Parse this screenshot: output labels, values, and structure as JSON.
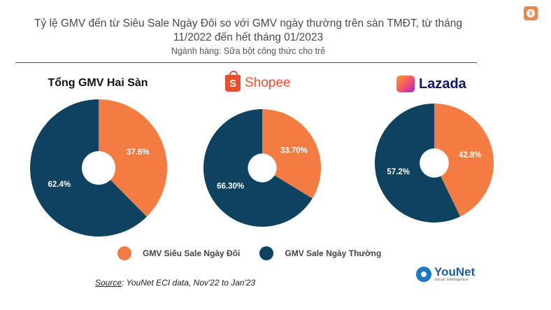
{
  "title": "Tỷ lệ GMV đến từ Siêu Sale Ngày Đôi so với GMV ngày thường trên sàn TMĐT, từ tháng 11/2022 đến hết tháng 01/2023",
  "subtitle": "Ngành hàng: Sữa bột công thức cho trẻ",
  "page_number": "8",
  "colors": {
    "sieu_sale": "#f47c43",
    "ngay_thuong": "#0d4360",
    "shopee": "#ee4d2d",
    "lazada": "#10156f"
  },
  "logos": {
    "shopee": "Shopee",
    "lazada": "Lazada",
    "younet": "YouNet",
    "younet_tagline": "social intelligence"
  },
  "chart_data": [
    {
      "type": "pie",
      "title": "Tổng GMV Hai Sàn",
      "categories": [
        "GMV Siêu Sale Ngày Đôi",
        "GMV Sale Ngày Thường"
      ],
      "values": [
        37.6,
        62.4
      ],
      "labels": [
        "37.6%",
        "62.4%"
      ]
    },
    {
      "type": "pie",
      "title": "Shopee",
      "categories": [
        "GMV Siêu Sale Ngày Đôi",
        "GMV Sale Ngày Thường"
      ],
      "values": [
        33.7,
        66.3
      ],
      "labels": [
        "33.70%",
        "66.30%"
      ]
    },
    {
      "type": "pie",
      "title": "Lazada",
      "categories": [
        "GMV Siêu Sale Ngày Đôi",
        "GMV Sale Ngày Thường"
      ],
      "values": [
        42.8,
        57.2
      ],
      "labels": [
        "42.8%",
        "57.2%"
      ]
    }
  ],
  "legend": [
    {
      "label": "GMV Siêu Sale Ngày Đôi",
      "color": "#f47c43"
    },
    {
      "label": "GMV Sale Ngày Thường",
      "color": "#0d4360"
    }
  ],
  "source": {
    "label": "Source",
    "text": ": YouNet ECI data, Nov'22 to Jan'23"
  }
}
